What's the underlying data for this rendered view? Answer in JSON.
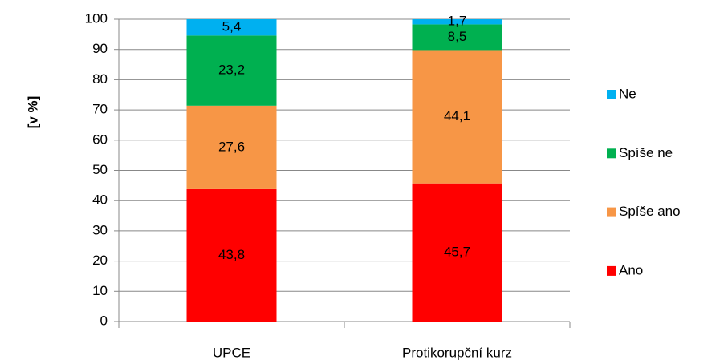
{
  "chart_data": {
    "type": "stacked_bar",
    "y_label": "[v %]",
    "categories": [
      "UPCE",
      "Protikorupční kurz"
    ],
    "series": [
      {
        "name": "Ano",
        "color": "#ff0000",
        "values": [
          43.8,
          45.7
        ],
        "value_labels": [
          "43,8",
          "45,7"
        ]
      },
      {
        "name": "Spíše ano",
        "color": "#f79646",
        "values": [
          27.6,
          44.1
        ],
        "value_labels": [
          "27,6",
          "44,1"
        ]
      },
      {
        "name": "Spíše ne",
        "color": "#00b050",
        "values": [
          23.2,
          8.5
        ],
        "value_labels": [
          "23,2",
          "8,5"
        ]
      },
      {
        "name": "Ne",
        "color": "#00b0f0",
        "values": [
          5.4,
          1.7
        ],
        "value_labels": [
          "5,4",
          "1,7"
        ]
      }
    ],
    "ylim": [
      0,
      100
    ],
    "yticks": [
      0,
      10,
      20,
      30,
      40,
      50,
      60,
      70,
      80,
      90,
      100
    ],
    "grid": true,
    "legend": "right"
  }
}
